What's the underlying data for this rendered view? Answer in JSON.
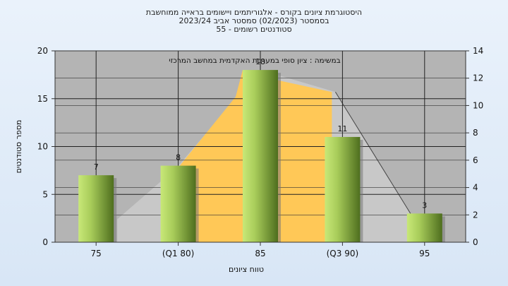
{
  "titles": [
    "היסטוגרמת ציונים בקורס - אלגוריתמים ויישומים בראייה ממוחשבת",
    "בסמסטר  (02/2023)  סמסטר אביב 2023/24",
    "סטודנטים רשומים - 55"
  ],
  "chart_data": {
    "type": "bar",
    "categories": [
      "75",
      "(Q1 80)",
      "85",
      "(Q3 90)",
      "95"
    ],
    "values": [
      7,
      8,
      18,
      11,
      3
    ],
    "xlabel": "טווח ציונים",
    "ylabel": "מספר סטודנטים",
    "ylim": [
      0,
      20
    ],
    "yticks": [
      0,
      5,
      10,
      15,
      20
    ],
    "y2lim": [
      0,
      14
    ],
    "y2ticks": [
      0,
      2,
      4,
      6,
      8,
      10,
      12,
      14
    ],
    "annotation": "במשימה : ציון סופי במערכת האקדמית במחשב המרכזי",
    "grid": true,
    "colors": {
      "plot_bg": "#b4b4b4",
      "bar_light": "#c8e878",
      "bar_dark": "#4e6e1e",
      "highlight_area": "#ffc857",
      "side_area": "#c8c8c8"
    }
  }
}
